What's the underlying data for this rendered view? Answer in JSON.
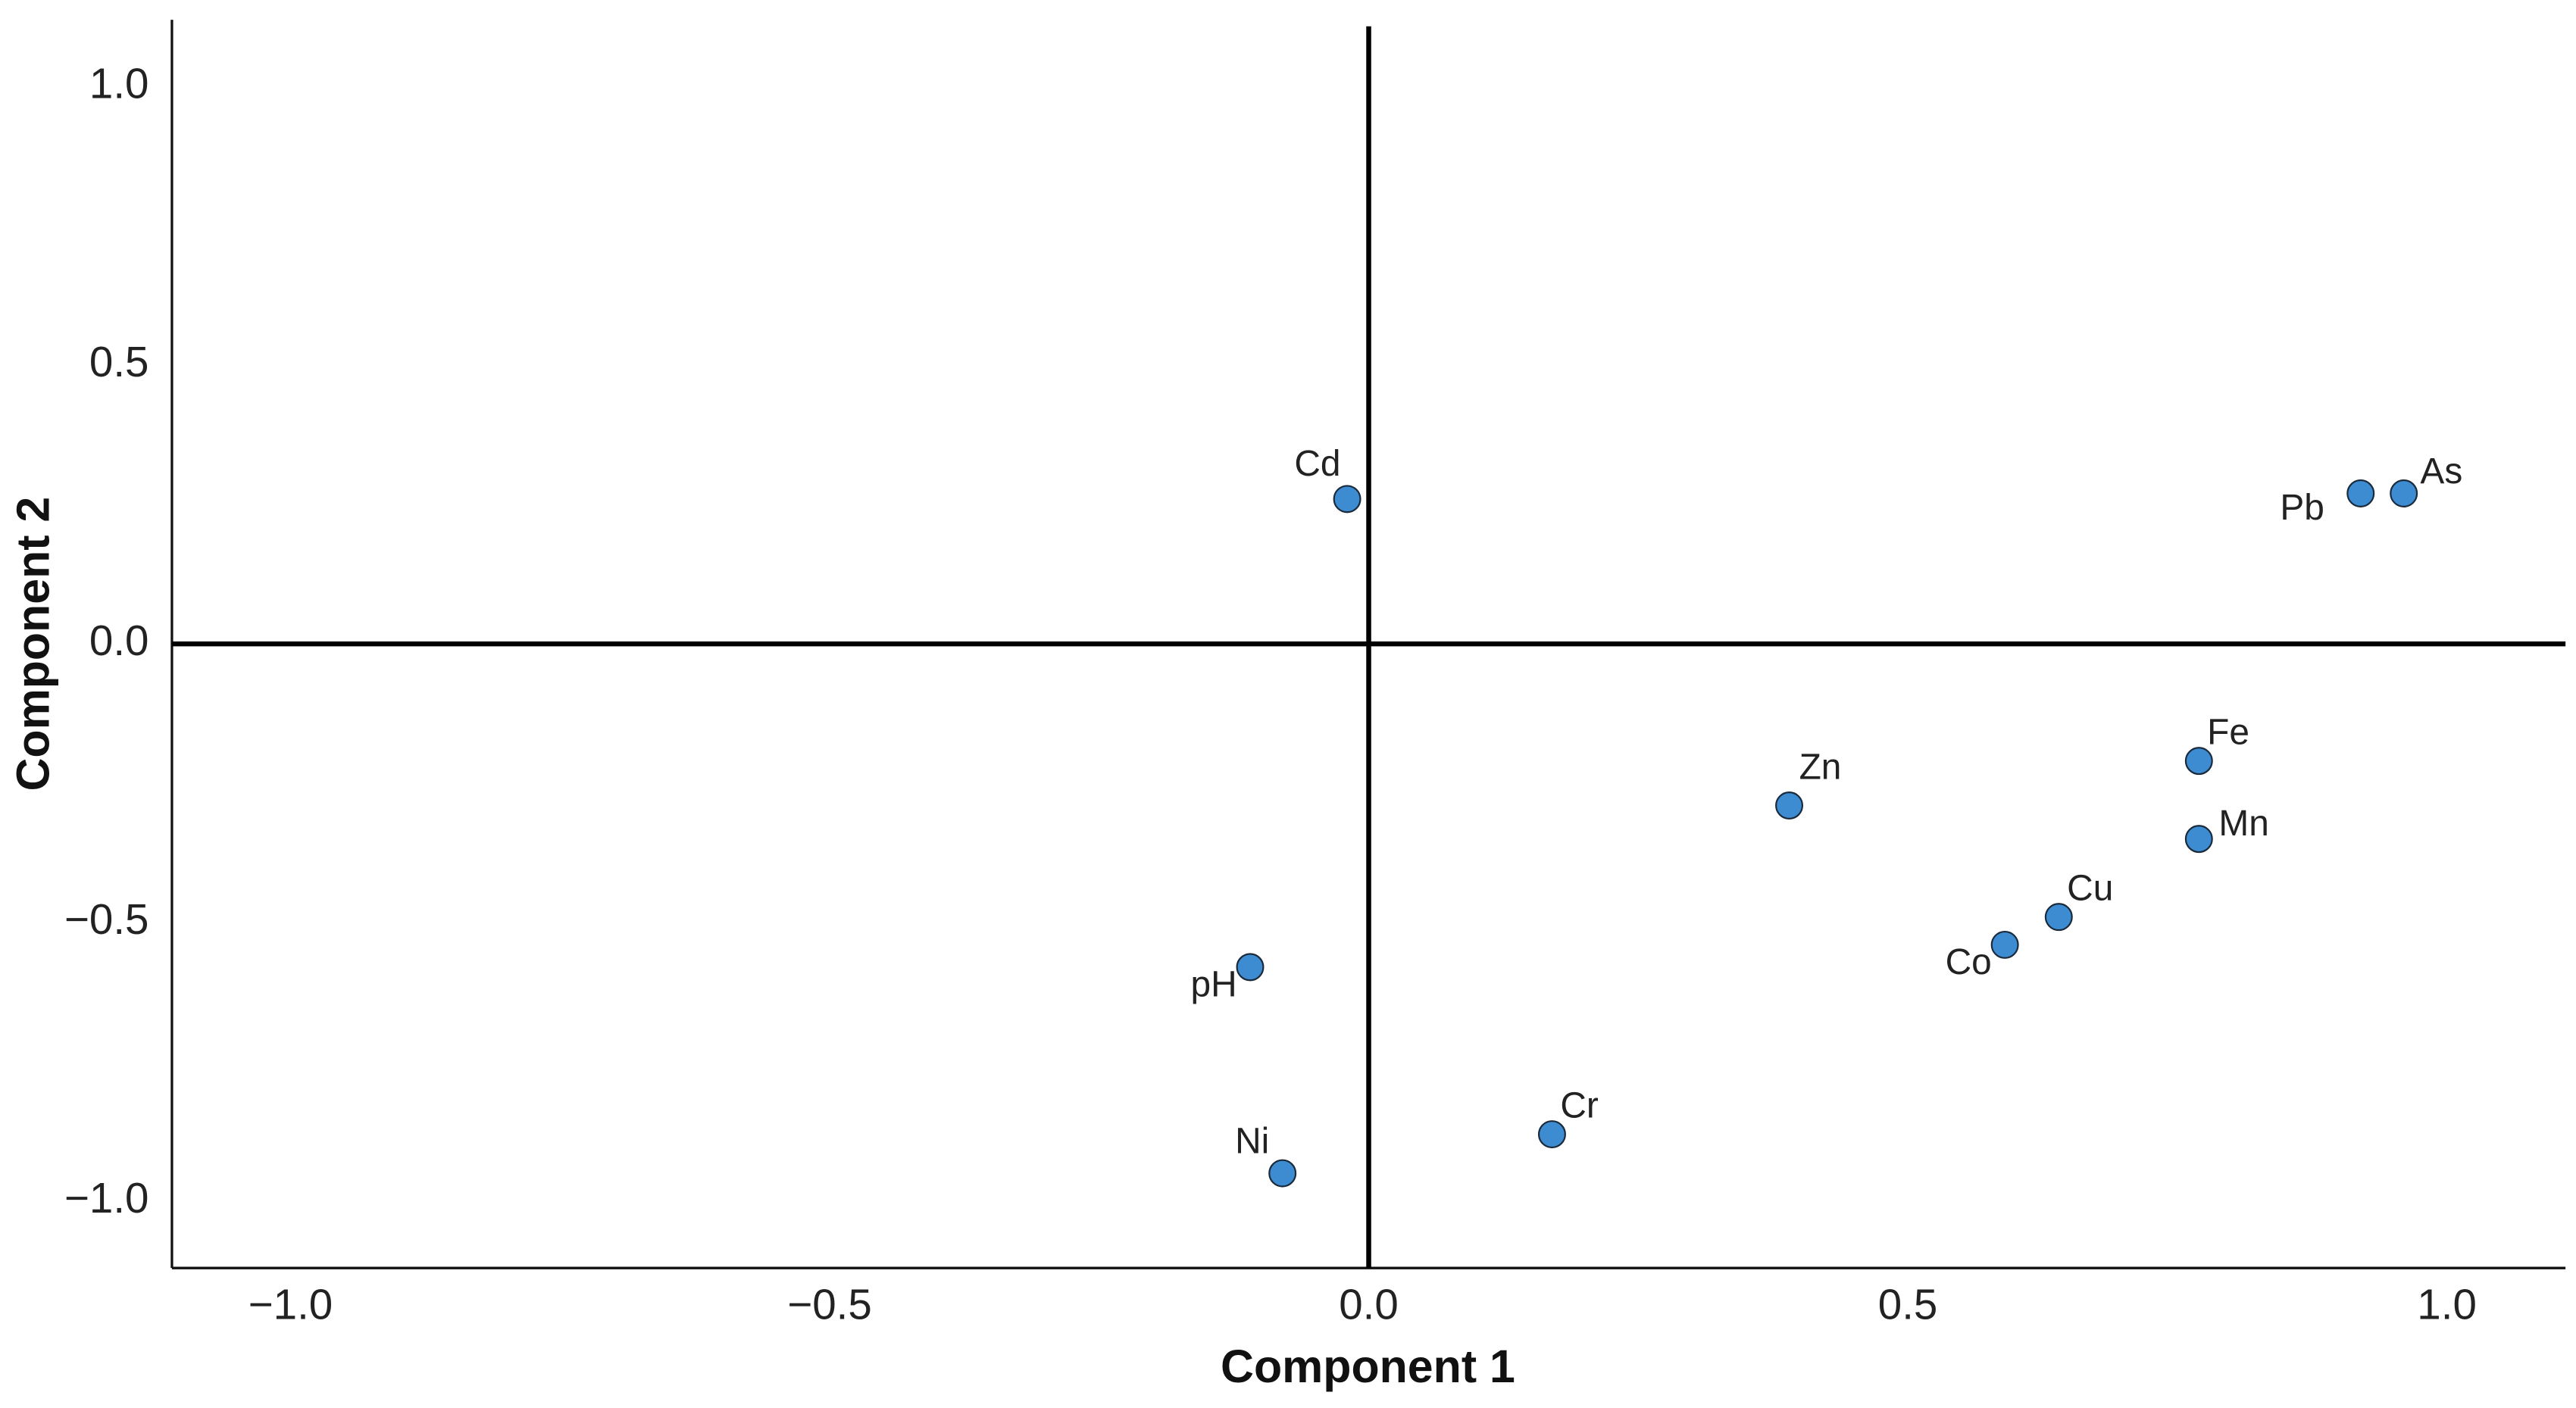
{
  "chart_data": {
    "type": "scatter",
    "xlabel": "Component 1",
    "ylabel": "Component 2",
    "labels": [
      "Cd",
      "Pb",
      "As",
      "Fe",
      "Zn",
      "Mn",
      "Cu",
      "Co",
      "pH",
      "Cr",
      "Ni"
    ],
    "x": [
      -0.02,
      0.92,
      0.96,
      0.77,
      0.39,
      0.77,
      0.64,
      0.59,
      -0.11,
      0.17,
      -0.08
    ],
    "values": [
      0.26,
      0.27,
      0.27,
      -0.21,
      -0.29,
      -0.35,
      -0.49,
      -0.54,
      -0.58,
      -0.88,
      -0.95
    ],
    "color": "#3d8bd1",
    "xlim": [
      -1.11,
      1.11
    ],
    "ylim": [
      -1.12,
      1.12
    ],
    "xticks": [
      {
        "value": -1,
        "label": "−1.0"
      },
      {
        "value": -0.5,
        "label": "−0.5"
      },
      {
        "value": 0,
        "label": "0.0"
      },
      0.5,
      {
        "value": 1,
        "label": "1.0"
      }
    ],
    "yticks": [
      {
        "value": -1,
        "label": "−1.0"
      },
      {
        "value": -0.5,
        "label": "−0.5"
      },
      {
        "value": 0,
        "label": "0.0"
      },
      0.5,
      {
        "value": 1,
        "label": "1.0"
      }
    ],
    "grid": false
  }
}
